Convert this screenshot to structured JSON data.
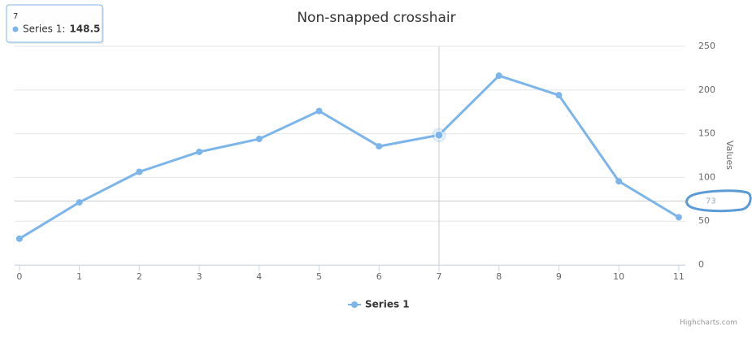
{
  "chart_data": {
    "type": "line",
    "title": "Non-snapped crosshair",
    "x": [
      0,
      1,
      2,
      3,
      4,
      5,
      6,
      7,
      8,
      9,
      10,
      11
    ],
    "series": [
      {
        "name": "Series 1",
        "color": "#7cb5ec",
        "values": [
          29.9,
          71.5,
          106.4,
          129.2,
          144.0,
          176.0,
          135.6,
          148.5,
          216.4,
          194.1,
          95.6,
          54.4
        ]
      }
    ],
    "xlim": [
      -0.08,
      11.11
    ],
    "xticks": [
      0,
      1,
      2,
      3,
      4,
      5,
      6,
      7,
      8,
      9,
      10,
      11
    ],
    "ylim": [
      0,
      250
    ],
    "yticks": [
      0,
      50,
      100,
      150,
      200,
      250
    ],
    "y_axis_label": "Values",
    "y_axis_side": "right",
    "grid": true,
    "legend": "bottom",
    "crosshair": {
      "x": 7,
      "y": 73
    },
    "tooltip": {
      "header": "7",
      "label": "Series 1:",
      "value": 148.5
    },
    "credits": "Highcharts.com"
  }
}
